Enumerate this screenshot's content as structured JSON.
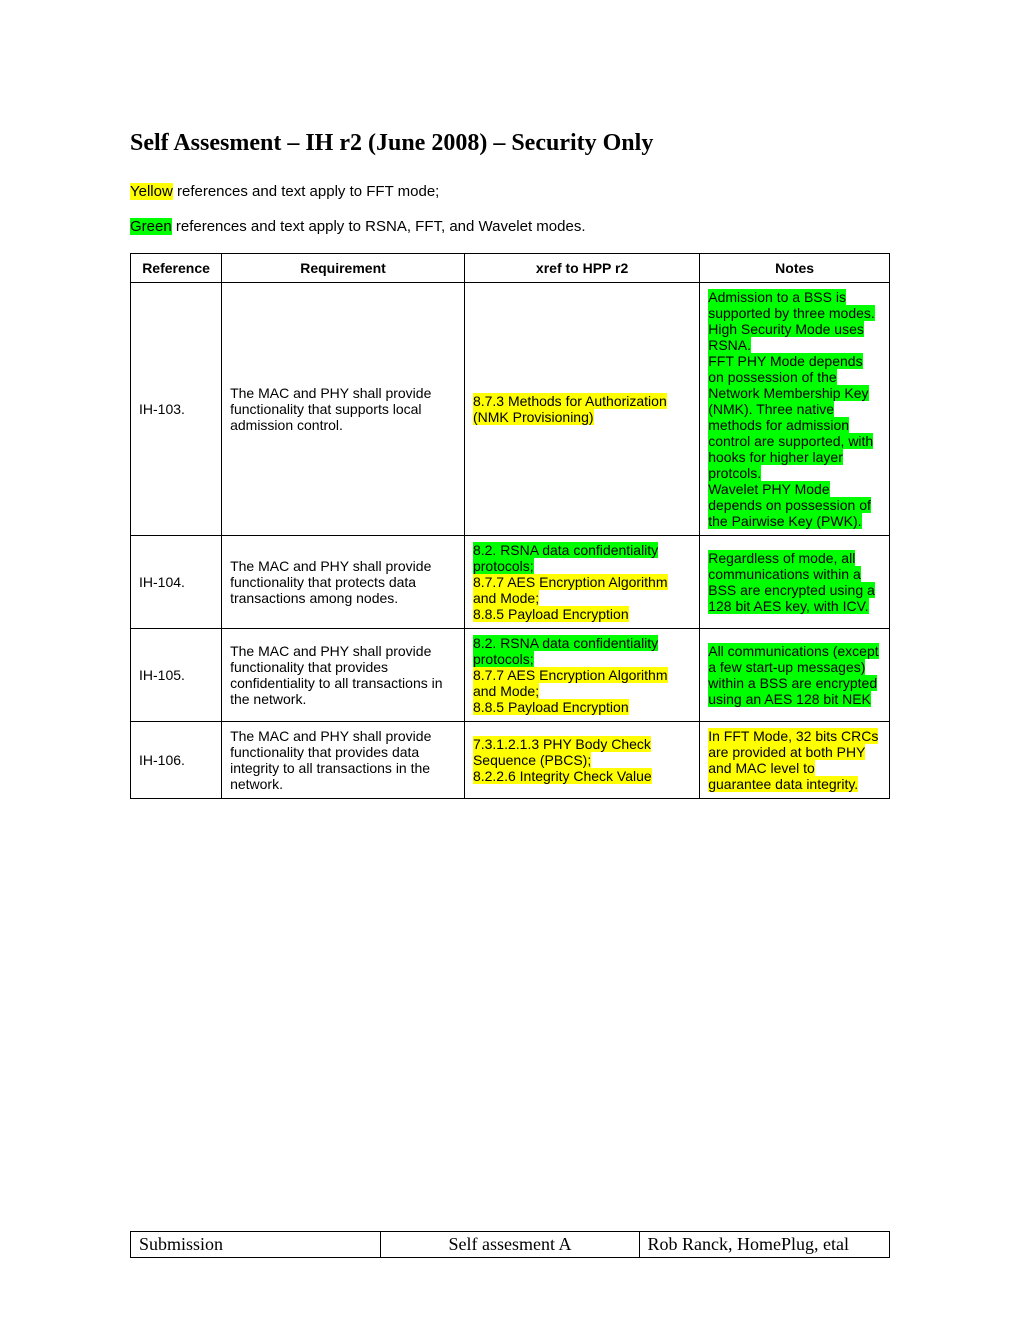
{
  "title": "Self Assesment – IH r2 (June 2008) – Security Only",
  "legend": {
    "yellow_word": "Yellow",
    "yellow_rest": " references and text apply to FFT mode;",
    "green_word": "Green",
    "green_rest": " references and text apply to RSNA, FFT, and Wavelet modes."
  },
  "columns": [
    "Reference",
    "Requirement",
    "xref to HPP r2",
    "Notes"
  ],
  "rows": [
    {
      "ref": "IH-103.",
      "req": "The MAC and PHY shall provide functionality that supports local admission control.",
      "xref": [
        {
          "text": "8.7.3 Methods for Authorization (NMK Provisioning)",
          "hl": "yellow"
        }
      ],
      "notes": [
        {
          "text": "Admission to a BSS is supported by three modes. High Security Mode uses RSNA.",
          "hl": "green"
        },
        {
          "text": "FFT PHY Mode depends on possession of the Network Membership Key (NMK). Three native methods for admission control are supported, with hooks for higher layer protcols.",
          "hl": "green"
        },
        {
          "text": "Wavelet PHY Mode depends on possession of the Pairwise Key (PWK).",
          "hl": "green"
        }
      ]
    },
    {
      "ref": "IH-104.",
      "req": "The MAC and PHY shall provide functionality that protects data transactions among nodes.",
      "xref": [
        {
          "text": "8.2. RSNA data confidentiality protocols;",
          "hl": "green"
        },
        {
          "text": "8.7.7 AES Encryption Algorithm and Mode;",
          "hl": "yellow"
        },
        {
          "text": "8.8.5 Payload Encryption",
          "hl": "yellow"
        }
      ],
      "notes": [
        {
          "text": "Regardless of mode, all communications within a BSS are encrypted using a 128 bit AES key, with ICV.",
          "hl": "green"
        }
      ]
    },
    {
      "ref": "IH-105.",
      "req": "The MAC and PHY shall provide functionality that provides confidentiality to all transactions in the network.",
      "xref": [
        {
          "text": "8.2. RSNA data confidentiality protocols;",
          "hl": "green"
        },
        {
          "text": "8.7.7 AES Encryption Algorithm and Mode;",
          "hl": "yellow"
        },
        {
          "text": "8.8.5 Payload Encryption",
          "hl": "yellow"
        }
      ],
      "notes": [
        {
          "text": "All communications (except a few start-up messages) within a BSS are encrypted using an AES 128 bit NEK",
          "hl": "green"
        }
      ]
    },
    {
      "ref": "IH-106.",
      "req": "The MAC and PHY shall provide functionality that provides data integrity to all transactions in the network.",
      "xref": [
        {
          "text": "7.3.1.2.1.3 PHY Body Check Sequence (PBCS);",
          "hl": "yellow"
        },
        {
          "text": "8.2.2.6 Integrity Check Value",
          "hl": "yellow"
        }
      ],
      "notes": [
        {
          "text": "In FFT Mode, 32 bits CRCs are provided at both PHY and MAC level to guarantee data integrity.",
          "hl": "yellow"
        }
      ]
    }
  ],
  "footer": {
    "left": "Submission",
    "mid": "Self assesment A",
    "right": "Rob Ranck, HomePlug, etal"
  },
  "colors": {
    "yellow": "#ffff00",
    "green": "#00ff00"
  }
}
